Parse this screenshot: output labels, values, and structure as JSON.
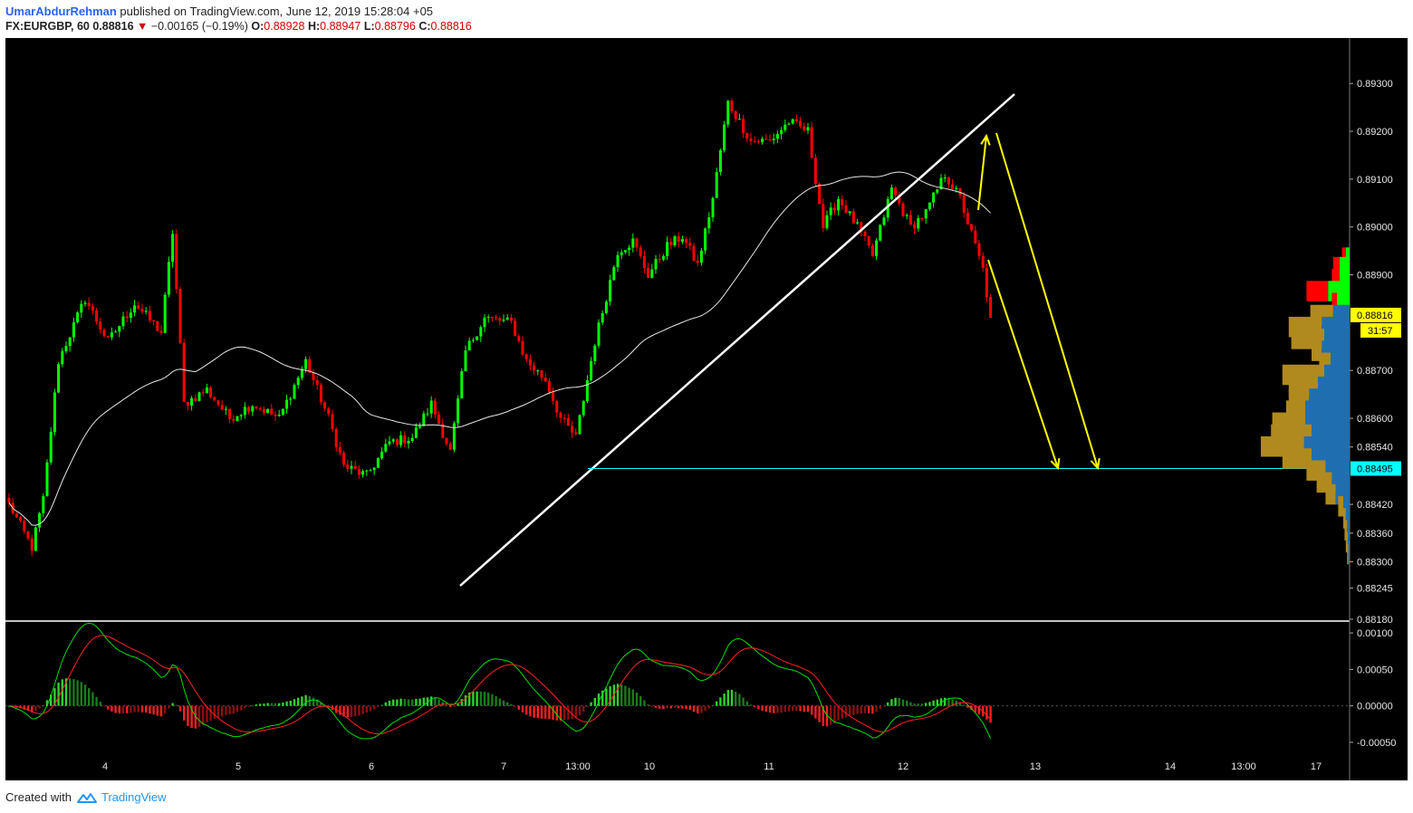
{
  "header": {
    "author": "UmarAbdurRehman",
    "published_text": "published on TradingView.com, June 12, 2019 15:28:04 +05",
    "symbol": "FX:EURGBP, 60",
    "last": "0.88816",
    "change_arrow": "▼",
    "change": "−0.00165 (−0.19%)",
    "o_label": "O:",
    "o": "0.88928",
    "h_label": "H:",
    "h": "0.88947",
    "l_label": "L:",
    "l": "0.88796",
    "c_label": "C:",
    "c": "0.88816"
  },
  "footer": {
    "created_with": "Created with",
    "brand": "TradingView"
  },
  "colors": {
    "background": "#000000",
    "up": "#00ff00",
    "down": "#ff0000",
    "ma": "#e8e8e8",
    "trendline": "#ffffff",
    "arrow": "#ffff00",
    "support": "#00ffff",
    "vp_blue": "#1f6fb0",
    "vp_gold": "#b08a1e"
  },
  "chart_data": [
    {
      "type": "candlestick",
      "symbol": "FX:EURGBP",
      "interval": "60",
      "x_ticks": [
        "4",
        "5",
        "6",
        "7",
        "13:00",
        "10",
        "11",
        "12",
        "13",
        "14",
        "13:00",
        "17"
      ],
      "y_ticks": [
        "0.89300",
        "0.89200",
        "0.89100",
        "0.89000",
        "0.88900",
        "0.88700",
        "0.88600",
        "0.88540",
        "0.88420",
        "0.88360",
        "0.88300",
        "0.88245",
        "0.88180"
      ],
      "ylim": [
        0.88178,
        0.89395
      ],
      "price_label": "0.88816",
      "countdown_label": "31:57",
      "support_label": "0.88495",
      "support_level": 0.88495,
      "ohlc_waypoints": [
        [
          0,
          0.8842
        ],
        [
          6,
          0.8833
        ],
        [
          9,
          0.8843
        ],
        [
          13,
          0.8872
        ],
        [
          20,
          0.8885
        ],
        [
          26,
          0.8876
        ],
        [
          33,
          0.8884
        ],
        [
          40,
          0.8878
        ],
        [
          43,
          0.8899
        ],
        [
          46,
          0.8863
        ],
        [
          52,
          0.8866
        ],
        [
          58,
          0.886
        ],
        [
          64,
          0.8863
        ],
        [
          71,
          0.886
        ],
        [
          78,
          0.8872
        ],
        [
          84,
          0.886
        ],
        [
          88,
          0.885
        ],
        [
          94,
          0.8848
        ],
        [
          100,
          0.8855
        ],
        [
          106,
          0.8856
        ],
        [
          111,
          0.8863
        ],
        [
          116,
          0.8853
        ],
        [
          120,
          0.8874
        ],
        [
          125,
          0.8881
        ],
        [
          132,
          0.888
        ],
        [
          136,
          0.8872
        ],
        [
          141,
          0.8868
        ],
        [
          145,
          0.886
        ],
        [
          149,
          0.8856
        ],
        [
          154,
          0.8876
        ],
        [
          160,
          0.8895
        ],
        [
          164,
          0.8897
        ],
        [
          168,
          0.889
        ],
        [
          173,
          0.8896
        ],
        [
          177,
          0.8898
        ],
        [
          181,
          0.8892
        ],
        [
          185,
          0.8906
        ],
        [
          189,
          0.8926
        ],
        [
          195,
          0.8918
        ],
        [
          200,
          0.8918
        ],
        [
          205,
          0.8922
        ],
        [
          210,
          0.892
        ],
        [
          214,
          0.89
        ],
        [
          218,
          0.8906
        ],
        [
          223,
          0.89
        ],
        [
          227,
          0.8894
        ],
        [
          232,
          0.8908
        ],
        [
          237,
          0.89
        ],
        [
          241,
          0.8903
        ],
        [
          246,
          0.8911
        ],
        [
          250,
          0.8906
        ],
        [
          254,
          0.8896
        ],
        [
          256,
          0.8891
        ],
        [
          258,
          0.8881
        ]
      ],
      "volume_profile": [
        {
          "price": 0.88935,
          "up": 0.3,
          "down": 0.3
        },
        {
          "price": 0.88915,
          "up": 0.8,
          "down": 0.5
        },
        {
          "price": 0.8889,
          "up": 0.8,
          "down": 0.6
        },
        {
          "price": 0.88865,
          "up": 1.7,
          "down": 1.7
        },
        {
          "price": 0.8884,
          "up": 1.0,
          "down": 0.4
        },
        {
          "price": 0.88815,
          "up": 1.3,
          "down": 1.8
        },
        {
          "price": 0.8879,
          "up": 2.2,
          "down": 2.6
        },
        {
          "price": 0.88765,
          "up": 2.0,
          "down": 2.6
        },
        {
          "price": 0.8874,
          "up": 2.2,
          "down": 0.8
        },
        {
          "price": 0.88715,
          "up": 1.5,
          "down": 0.9
        },
        {
          "price": 0.8869,
          "up": 2.0,
          "down": 3.3
        },
        {
          "price": 0.88665,
          "up": 2.5,
          "down": 2.3
        },
        {
          "price": 0.8864,
          "up": 3.2,
          "down": 1.6
        },
        {
          "price": 0.88615,
          "up": 3.5,
          "down": 1.5
        },
        {
          "price": 0.8859,
          "up": 3.5,
          "down": 2.6
        },
        {
          "price": 0.88565,
          "up": 3.0,
          "down": 3.2
        },
        {
          "price": 0.8854,
          "up": 3.6,
          "down": 3.4
        },
        {
          "price": 0.88515,
          "up": 3.0,
          "down": 2.3
        },
        {
          "price": 0.8849,
          "up": 1.9,
          "down": 1.5
        },
        {
          "price": 0.88465,
          "up": 1.4,
          "down": 1.2
        },
        {
          "price": 0.8844,
          "up": 1.1,
          "down": 0.8
        },
        {
          "price": 0.88415,
          "up": 0.5,
          "down": 0.4
        },
        {
          "price": 0.8839,
          "up": 0.3,
          "down": 0.2
        },
        {
          "price": 0.88365,
          "up": 0.2,
          "down": 0.2
        },
        {
          "price": 0.8834,
          "up": 0.15,
          "down": 0.15
        },
        {
          "price": 0.88315,
          "up": 0.1,
          "down": 0.1
        }
      ]
    },
    {
      "type": "macd",
      "y_ticks": [
        "0.00100",
        "0.00050",
        "0.00000",
        "-0.00050"
      ],
      "ylim": [
        -0.00065,
        0.00115
      ]
    }
  ]
}
